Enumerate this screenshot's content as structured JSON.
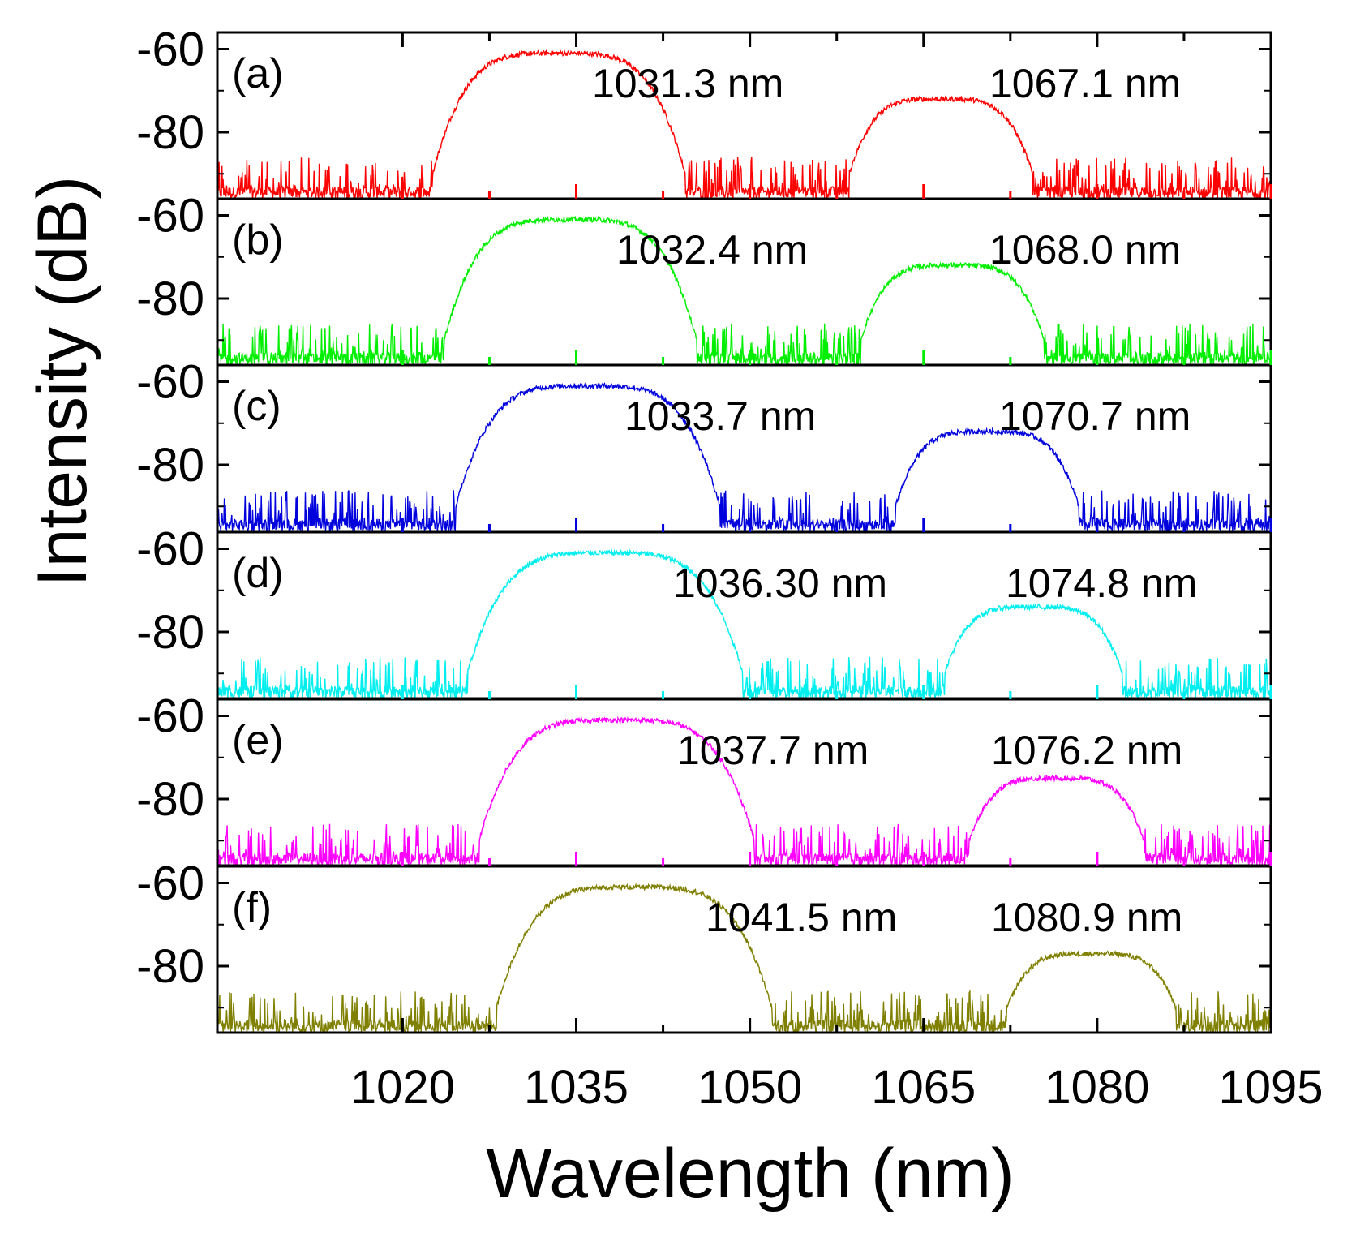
{
  "chart_data": {
    "type": "line",
    "layout": "stacked-panels",
    "xlabel": "Wavelength (nm)",
    "ylabel": "Intensity (dB)",
    "xlim": [
      1004,
      1095
    ],
    "x_ticks": [
      1020,
      1035,
      1050,
      1065,
      1080,
      1095
    ],
    "x_tick_labels": [
      "1020",
      "1035",
      "1050",
      "1065",
      "1080",
      "1095"
    ],
    "ylim": [
      -96,
      -56
    ],
    "y_ticks": [
      -60,
      -80
    ],
    "y_tick_labels": [
      "-60",
      "-80"
    ],
    "noise_floor_db": -92,
    "panels": [
      {
        "label": "(a)",
        "color": "#ff0000",
        "peaks": [
          {
            "center": 1033.5,
            "half_width": 11.0,
            "level": -61
          },
          {
            "center": 1066.5,
            "half_width": 9.0,
            "level": -72
          }
        ],
        "annotations": [
          "1031.3 nm",
          "1067.1 nm"
        ]
      },
      {
        "label": "(b)",
        "color": "#00ee00",
        "peaks": [
          {
            "center": 1034.5,
            "half_width": 11.0,
            "level": -61
          },
          {
            "center": 1067.5,
            "half_width": 9.0,
            "level": -72
          }
        ],
        "annotations": [
          "1032.4 nm",
          "1068.0 nm"
        ]
      },
      {
        "label": "(c)",
        "color": "#0000dd",
        "peaks": [
          {
            "center": 1036.0,
            "half_width": 11.5,
            "level": -61
          },
          {
            "center": 1070.5,
            "half_width": 9.0,
            "level": -72
          }
        ],
        "annotations": [
          "1033.7 nm",
          "1070.7 nm"
        ]
      },
      {
        "label": "(d)",
        "color": "#00eeee",
        "peaks": [
          {
            "center": 1037.5,
            "half_width": 12.0,
            "level": -61
          },
          {
            "center": 1074.5,
            "half_width": 9.0,
            "level": -74
          }
        ],
        "annotations": [
          "1036.30 nm",
          "1074.8 nm"
        ]
      },
      {
        "label": "(e)",
        "color": "#ff00ff",
        "peaks": [
          {
            "center": 1038.5,
            "half_width": 12.0,
            "level": -61
          },
          {
            "center": 1076.5,
            "half_width": 9.0,
            "level": -75
          }
        ],
        "annotations": [
          "1037.7 nm",
          "1076.2 nm"
        ]
      },
      {
        "label": "(f)",
        "color": "#808000",
        "peaks": [
          {
            "center": 1040.0,
            "half_width": 12.0,
            "level": -61
          },
          {
            "center": 1079.5,
            "half_width": 9.0,
            "level": -77
          }
        ],
        "annotations": [
          "1041.5 nm",
          "1080.9 nm"
        ]
      }
    ]
  }
}
